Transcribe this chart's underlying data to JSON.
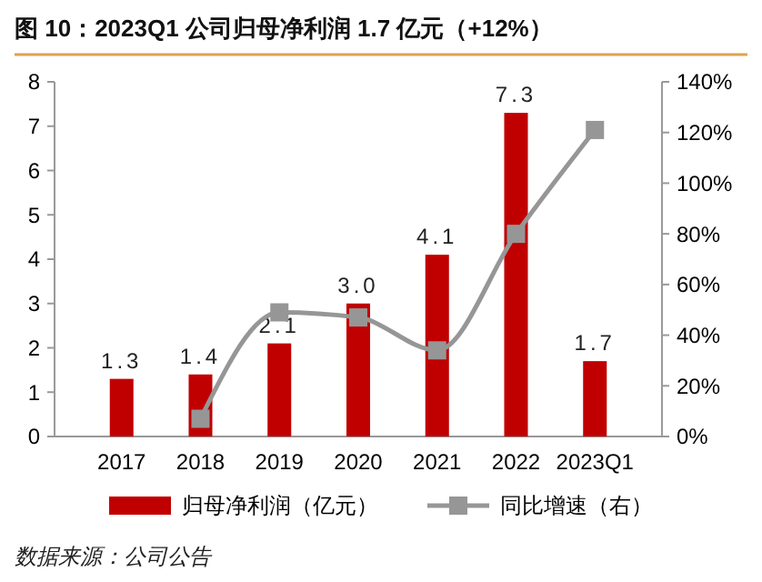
{
  "chart_data": {
    "type": "bar",
    "title": "图 10：2023Q1 公司归母净利润 1.7 亿元（+12%）",
    "categories": [
      "2017",
      "2018",
      "2019",
      "2020",
      "2021",
      "2022",
      "2023Q1"
    ],
    "series": [
      {
        "name": "归母净利润（亿元）",
        "color": "#c00000",
        "values": [
          1.3,
          1.4,
          2.1,
          3.0,
          4.1,
          7.3,
          1.7
        ],
        "value_labels": [
          "1.3",
          "1.4",
          "2.1",
          "3.0",
          "4.1",
          "7.3",
          "1.7"
        ]
      },
      {
        "name": "同比增速（右）",
        "type": "line",
        "axis": "y2",
        "color": "#969696",
        "values": [
          null,
          7,
          49,
          47,
          34,
          80,
          121
        ]
      }
    ],
    "ylim": [
      0,
      8
    ],
    "yticks": [
      0,
      1,
      2,
      3,
      4,
      5,
      6,
      7,
      8
    ],
    "y2lim": [
      0,
      140
    ],
    "y2ticks": [
      {
        "value": 0,
        "label": "0%"
      },
      {
        "value": 20,
        "label": "20%"
      },
      {
        "value": 40,
        "label": "40%"
      },
      {
        "value": 60,
        "label": "60%"
      },
      {
        "value": 80,
        "label": "80%"
      },
      {
        "value": 100,
        "label": "100%"
      },
      {
        "value": 120,
        "label": "120%"
      },
      {
        "value": 140,
        "label": "140%"
      }
    ],
    "marker": "square",
    "legend": "bottom",
    "grid": false,
    "annotations": [
      "数据来源：公司公告"
    ]
  }
}
